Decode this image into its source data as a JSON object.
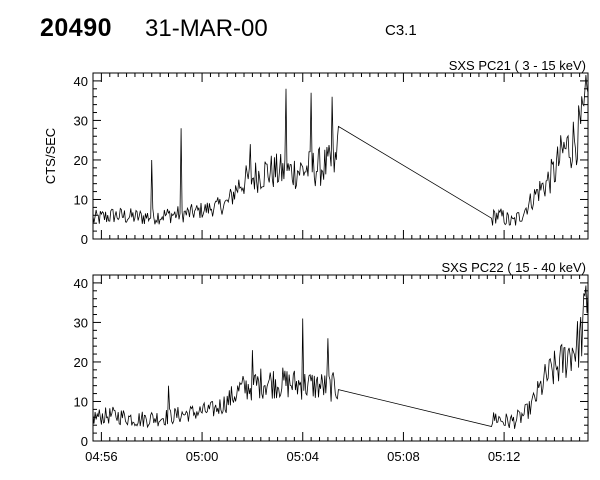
{
  "header": {
    "event_id": "20490",
    "date": "31-MAR-00",
    "flare_class": "C3.1"
  },
  "chart_data": [
    {
      "type": "line",
      "title": "SXS PC21  (  3 - 15 keV)",
      "ylabel": "CTS/SEC",
      "xlabel": "",
      "xlim": [
        "04:55:40",
        "05:15:20"
      ],
      "ylim": [
        0,
        42
      ],
      "yticks": [
        0,
        10,
        20,
        30,
        40
      ],
      "xticks": [
        "04:56",
        "05:00",
        "05:04",
        "05:08",
        "05:12"
      ],
      "grid": false,
      "series": [
        {
          "x": [
            "04:55:40",
            "04:56:30",
            "04:57:30",
            "04:58:30",
            "04:59:30",
            "05:00:30",
            "05:01:00",
            "05:01:30",
            "05:02:30",
            "05:03:30",
            "05:04:30",
            "05:05:20",
            "05:05:25",
            "05:11:30",
            "05:11:40",
            "05:12:00",
            "05:12:20",
            "05:12:40",
            "05:13:00",
            "05:13:20",
            "05:13:40",
            "05:14:00",
            "05:14:20",
            "05:14:40",
            "05:15:00",
            "05:15:10",
            "05:15:20"
          ],
          "y": [
            5,
            6,
            5.5,
            6,
            6.5,
            8,
            9,
            14,
            17,
            17,
            18,
            19,
            28.5,
            5,
            6,
            5.5,
            4,
            6,
            9,
            12,
            14,
            17,
            22,
            24,
            27,
            30,
            37
          ],
          "spikes": [
            {
              "x": "04:58:00",
              "y": 20
            },
            {
              "x": "04:59:10",
              "y": 28
            },
            {
              "x": "05:01:55",
              "y": 24
            },
            {
              "x": "05:03:20",
              "y": 38
            },
            {
              "x": "05:04:20",
              "y": 37
            },
            {
              "x": "05:05:10",
              "y": 36
            }
          ]
        }
      ]
    },
    {
      "type": "line",
      "title": "SXS PC22  ( 15 - 40 keV)",
      "ylabel": "",
      "xlabel": "",
      "xlim": [
        "04:55:40",
        "05:15:20"
      ],
      "ylim": [
        0,
        42
      ],
      "yticks": [
        0,
        10,
        20,
        30,
        40
      ],
      "xticks": [
        "04:56",
        "05:00",
        "05:04",
        "05:08",
        "05:12"
      ],
      "grid": false,
      "series": [
        {
          "x": [
            "04:55:40",
            "04:56:30",
            "04:57:30",
            "04:58:30",
            "04:59:30",
            "05:00:30",
            "05:01:00",
            "05:01:30",
            "05:02:30",
            "05:03:30",
            "05:04:30",
            "05:05:20",
            "05:05:25",
            "05:11:30",
            "05:11:40",
            "05:12:00",
            "05:12:20",
            "05:12:40",
            "05:13:00",
            "05:13:20",
            "05:13:40",
            "05:14:00",
            "05:14:20",
            "05:14:40",
            "05:15:00",
            "05:15:10",
            "05:15:20"
          ],
          "y": [
            6,
            6.5,
            5.5,
            6,
            7,
            8,
            10,
            13,
            15,
            14.5,
            14,
            13.5,
            13,
            5,
            6,
            5,
            5,
            6,
            8,
            12,
            16,
            18,
            20,
            23,
            25,
            30,
            38
          ],
          "spikes": [
            {
              "x": "04:58:40",
              "y": 14
            },
            {
              "x": "05:02:00",
              "y": 23
            },
            {
              "x": "05:04:00",
              "y": 31
            },
            {
              "x": "05:05:00",
              "y": 26
            }
          ]
        }
      ]
    }
  ]
}
